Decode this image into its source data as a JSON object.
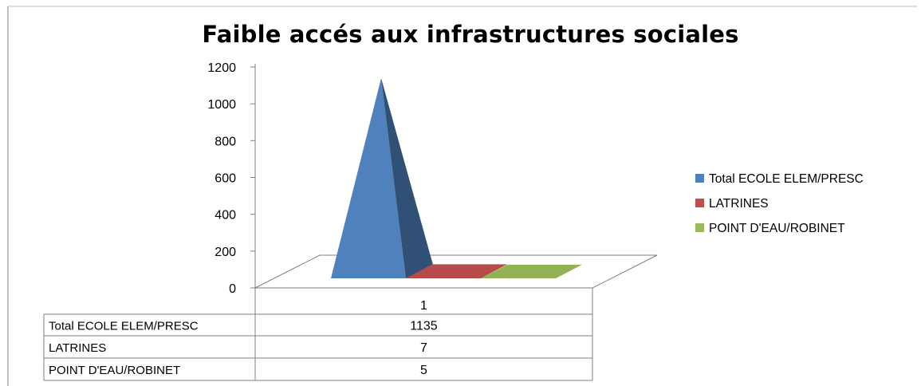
{
  "chart_data": {
    "type": "bar",
    "subtype": "3d-pyramid",
    "title": "Faible accés aux infrastructures sociales",
    "categories": [
      "1"
    ],
    "series": [
      {
        "name": "Total ECOLE ELEM/PRESC",
        "values": [
          1135
        ],
        "color": "#4F81BD"
      },
      {
        "name": "LATRINES",
        "values": [
          7
        ],
        "color": "#C0504D"
      },
      {
        "name": "POINT D'EAU/ROBINET",
        "values": [
          5
        ],
        "color": "#9BBB59"
      }
    ],
    "y_ticks": [
      "0",
      "200",
      "400",
      "600",
      "800",
      "1000",
      "1200"
    ],
    "ylim": [
      0,
      1200
    ],
    "grid": false,
    "legend": "right",
    "data_table": true
  }
}
